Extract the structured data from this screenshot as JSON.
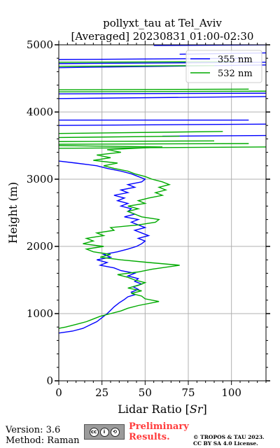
{
  "chart_data": {
    "type": "line",
    "title": "pollyxt_tau at Tel_Aviv",
    "subtitle": "[Averaged] 20230831 01:00-02:30",
    "xlabel": "Lidar Ratio [$Sr$]",
    "xlabel_text": "Lidar Ratio [",
    "xlabel_unit": "Sr",
    "xlabel_end": "]",
    "ylabel": "Height (m)",
    "xlim": [
      0,
      120
    ],
    "ylim": [
      0,
      5000
    ],
    "xticks": [
      "0",
      "25",
      "50",
      "75",
      "100"
    ],
    "yticks": [
      "0",
      "1000",
      "2000",
      "3000",
      "4000",
      "5000"
    ],
    "grid": true,
    "legend_position": "top-right",
    "series": [
      {
        "name": "355 nm",
        "color": "#0000ff",
        "points": [
          [
            0,
            710
          ],
          [
            8,
            740
          ],
          [
            14,
            780
          ],
          [
            18,
            830
          ],
          [
            22,
            880
          ],
          [
            25,
            940
          ],
          [
            28,
            1000
          ],
          [
            30,
            1050
          ],
          [
            32,
            1100
          ],
          [
            35,
            1160
          ],
          [
            38,
            1210
          ],
          [
            40,
            1250
          ],
          [
            44,
            1280
          ],
          [
            42,
            1320
          ],
          [
            46,
            1360
          ],
          [
            43,
            1400
          ],
          [
            48,
            1440
          ],
          [
            44,
            1480
          ],
          [
            46,
            1520
          ],
          [
            40,
            1560
          ],
          [
            44,
            1600
          ],
          [
            36,
            1640
          ],
          [
            32,
            1680
          ],
          [
            24,
            1720
          ],
          [
            28,
            1760
          ],
          [
            22,
            1800
          ],
          [
            30,
            1840
          ],
          [
            26,
            1880
          ],
          [
            34,
            1920
          ],
          [
            40,
            1960
          ],
          [
            45,
            2000
          ],
          [
            48,
            2040
          ],
          [
            50,
            2080
          ],
          [
            46,
            2120
          ],
          [
            52,
            2160
          ],
          [
            48,
            2200
          ],
          [
            44,
            2240
          ],
          [
            50,
            2280
          ],
          [
            46,
            2320
          ],
          [
            42,
            2360
          ],
          [
            46,
            2400
          ],
          [
            38,
            2440
          ],
          [
            44,
            2480
          ],
          [
            40,
            2520
          ],
          [
            42,
            2560
          ],
          [
            36,
            2600
          ],
          [
            40,
            2640
          ],
          [
            34,
            2680
          ],
          [
            38,
            2720
          ],
          [
            32,
            2760
          ],
          [
            40,
            2800
          ],
          [
            36,
            2840
          ],
          [
            44,
            2880
          ],
          [
            40,
            2920
          ],
          [
            48,
            2960
          ],
          [
            50,
            3000
          ],
          [
            46,
            3040
          ],
          [
            42,
            3080
          ],
          [
            36,
            3120
          ],
          [
            28,
            3160
          ],
          [
            22,
            3200
          ],
          [
            10,
            3240
          ],
          [
            0,
            3270
          ]
        ],
        "segments": [
          [
            [
              0,
              3800
            ],
            [
              120,
              3820
            ]
          ],
          [
            [
              0,
              3880
            ],
            [
              110,
              3880
            ]
          ],
          [
            [
              60,
              3640
            ],
            [
              120,
              3650
            ]
          ],
          [
            [
              0,
              4200
            ],
            [
              120,
              4230
            ]
          ],
          [
            [
              0,
              4270
            ],
            [
              120,
              4280
            ]
          ],
          [
            [
              0,
              4660
            ],
            [
              120,
              4700
            ]
          ],
          [
            [
              0,
              4720
            ],
            [
              120,
              4740
            ]
          ],
          [
            [
              0,
              4780
            ],
            [
              110,
              4800
            ]
          ],
          [
            [
              70,
              4860
            ],
            [
              120,
              4880
            ]
          ],
          [
            [
              55,
              4990
            ],
            [
              120,
              5000
            ]
          ]
        ]
      },
      {
        "name": "532 nm",
        "color": "#00aa00",
        "points": [
          [
            0,
            780
          ],
          [
            4,
            800
          ],
          [
            10,
            840
          ],
          [
            16,
            880
          ],
          [
            20,
            920
          ],
          [
            24,
            960
          ],
          [
            30,
            1000
          ],
          [
            36,
            1040
          ],
          [
            40,
            1080
          ],
          [
            46,
            1120
          ],
          [
            58,
            1180
          ],
          [
            50,
            1220
          ],
          [
            48,
            1260
          ],
          [
            42,
            1300
          ],
          [
            48,
            1340
          ],
          [
            40,
            1380
          ],
          [
            46,
            1420
          ],
          [
            50,
            1460
          ],
          [
            44,
            1500
          ],
          [
            40,
            1540
          ],
          [
            34,
            1580
          ],
          [
            46,
            1620
          ],
          [
            54,
            1660
          ],
          [
            70,
            1720
          ],
          [
            52,
            1760
          ],
          [
            36,
            1800
          ],
          [
            24,
            1840
          ],
          [
            30,
            1880
          ],
          [
            20,
            1920
          ],
          [
            16,
            1960
          ],
          [
            26,
            2000
          ],
          [
            14,
            2040
          ],
          [
            20,
            2080
          ],
          [
            16,
            2120
          ],
          [
            26,
            2160
          ],
          [
            22,
            2200
          ],
          [
            32,
            2240
          ],
          [
            30,
            2280
          ],
          [
            46,
            2320
          ],
          [
            56,
            2360
          ],
          [
            58,
            2400
          ],
          [
            48,
            2440
          ],
          [
            44,
            2480
          ],
          [
            40,
            2520
          ],
          [
            46,
            2560
          ],
          [
            40,
            2600
          ],
          [
            50,
            2640
          ],
          [
            46,
            2680
          ],
          [
            52,
            2720
          ],
          [
            60,
            2760
          ],
          [
            56,
            2800
          ],
          [
            62,
            2840
          ],
          [
            58,
            2880
          ],
          [
            64,
            2920
          ],
          [
            60,
            2960
          ],
          [
            54,
            3000
          ],
          [
            50,
            3040
          ],
          [
            44,
            3080
          ],
          [
            40,
            3120
          ],
          [
            32,
            3160
          ],
          [
            26,
            3200
          ],
          [
            34,
            3240
          ],
          [
            20,
            3280
          ],
          [
            30,
            3320
          ],
          [
            22,
            3360
          ],
          [
            36,
            3400
          ],
          [
            28,
            3440
          ],
          [
            60,
            3480
          ],
          [
            0,
            3500
          ]
        ],
        "segments": [
          [
            [
              0,
              3520
            ],
            [
              110,
              3530
            ]
          ],
          [
            [
              0,
              3460
            ],
            [
              120,
              3480
            ]
          ],
          [
            [
              0,
              3560
            ],
            [
              90,
              3570
            ]
          ],
          [
            [
              0,
              3620
            ],
            [
              70,
              3640
            ]
          ],
          [
            [
              0,
              3680
            ],
            [
              95,
              3710
            ]
          ],
          [
            [
              0,
              4300
            ],
            [
              120,
              4310
            ]
          ],
          [
            [
              0,
              4330
            ],
            [
              110,
              4340
            ]
          ],
          [
            [
              0,
              4680
            ],
            [
              90,
              4690
            ]
          ],
          [
            [
              0,
              4740
            ],
            [
              100,
              4750
            ]
          ]
        ]
      }
    ]
  },
  "footer": {
    "version": "Version: 3.6",
    "method": "Method: Raman",
    "prelim_line1": "Preliminary",
    "prelim_line2": "Results.",
    "copyright_line1": "© TROPOS & TAU 2023.",
    "copyright_line2": "CC BY SA 4.0 License."
  }
}
